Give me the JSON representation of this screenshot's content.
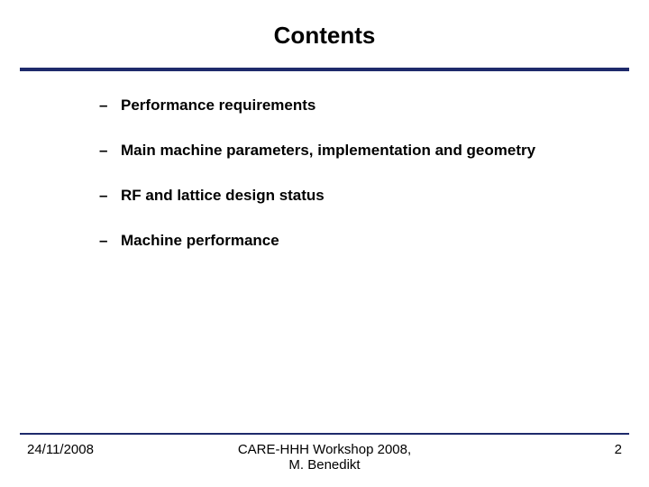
{
  "title": "Contents",
  "rule_color": "#1e2a6b",
  "bullets": [
    {
      "text": "Performance requirements"
    },
    {
      "text": "Main machine parameters, implementation and geometry"
    },
    {
      "text": "RF and lattice design status"
    },
    {
      "text": "Machine performance"
    }
  ],
  "dash": "–",
  "footer": {
    "date": "24/11/2008",
    "center_line1": "CARE-HHH Workshop 2008,",
    "center_line2": "M. Benedikt",
    "page": "2"
  }
}
